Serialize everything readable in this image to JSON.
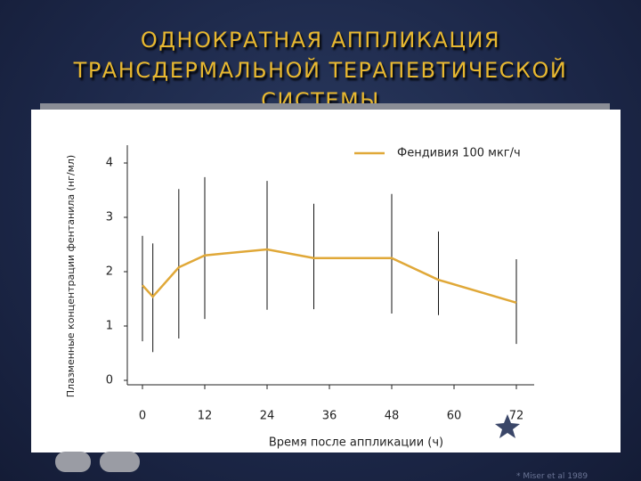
{
  "slide": {
    "title": "ОДНОКРАТНАЯ АППЛИКАЦИЯ ТРАНСДЕРМАЛЬНОЙ ТЕРАПЕВТИЧЕСКОЙ СИСТЕМЫ",
    "footnote": "* Miser et al 1989"
  },
  "chart_data": {
    "type": "line",
    "x_label": "Время после аппликации  (ч)",
    "y_label": "Плазменные концентрации фентанила (нг/мл)",
    "x": [
      0,
      2,
      7,
      12,
      24,
      33,
      48,
      57,
      72
    ],
    "series": [
      {
        "name": "Фендивия 100 мкг/ч",
        "color": "#e0a838",
        "values": [
          1.75,
          1.54,
          2.08,
          2.3,
          2.41,
          2.25,
          2.25,
          1.85,
          1.43
        ],
        "err_low": [
          0.72,
          0.52,
          0.77,
          1.13,
          1.3,
          1.31,
          1.23,
          1.2,
          0.67
        ],
        "err_high": [
          2.66,
          2.52,
          3.52,
          3.74,
          3.67,
          3.25,
          3.43,
          2.74,
          2.23
        ]
      }
    ],
    "xlim": [
      0,
      72
    ],
    "xticks": [
      0,
      12,
      24,
      36,
      48,
      60,
      72
    ],
    "ylim": [
      0,
      4
    ],
    "yticks": [
      0,
      1,
      2,
      3,
      4
    ],
    "legend": "top-right",
    "grid": false
  }
}
